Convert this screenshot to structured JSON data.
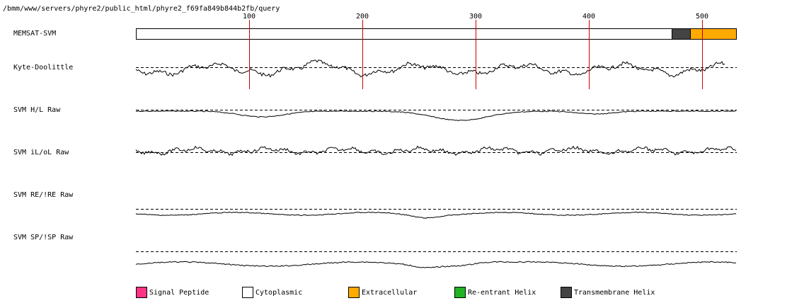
{
  "header": {
    "path": "/bmm/www/servers/phyre2/public_html/phyre2_f69fa849b844b2fb/query"
  },
  "ruler": {
    "ticks": [
      "100",
      "200",
      "300",
      "400",
      "500"
    ]
  },
  "tracks": [
    {
      "label": "MEMSAT-SVM"
    },
    {
      "label": "Kyte-Doolittle"
    },
    {
      "label": "SVM H/L Raw"
    },
    {
      "label": "SVM iL/oL Raw"
    },
    {
      "label": "SVM RE/!RE Raw"
    },
    {
      "label": "SVM SP/!SP Raw"
    }
  ],
  "memsat_segments": [
    {
      "type": "Cytoplasmic",
      "start": 1,
      "end": 472
    },
    {
      "type": "Transmembrane Helix",
      "start": 473,
      "end": 488
    },
    {
      "type": "Extracellular",
      "start": 489,
      "end": 530
    }
  ],
  "legend": [
    {
      "label": "Signal Peptide",
      "color": "#ff3385"
    },
    {
      "label": "Cytoplasmic",
      "color": "#ffffff"
    },
    {
      "label": "Extracellular",
      "color": "#ffaa00"
    },
    {
      "label": "Re-entrant Helix",
      "color": "#22b322"
    },
    {
      "label": "Transmembrane Helix",
      "color": "#444444"
    }
  ],
  "colors": {
    "tick_line": "#cc0000"
  }
}
